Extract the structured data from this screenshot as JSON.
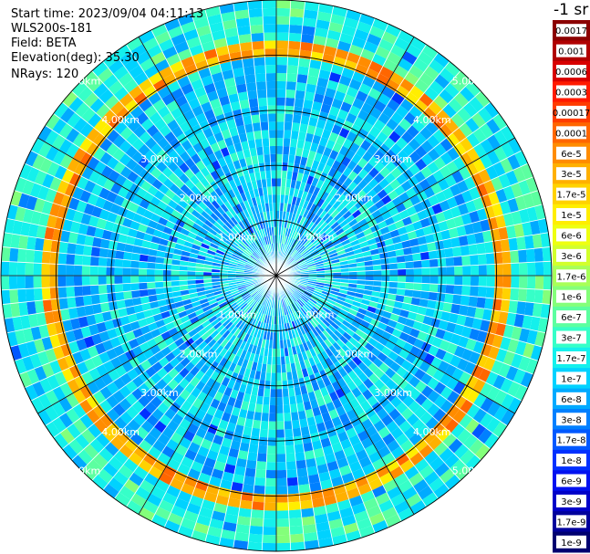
{
  "header": {
    "start_time": "Start time: 2023/09/04 04:11:13",
    "instrument": "WLS200s-181",
    "field": "Field: BETA",
    "elevation": "Elevation(deg): 35.30",
    "nrays": "NRays: 120"
  },
  "colorbar": {
    "unit_label": "-1 sr",
    "ticks": [
      "0.0017",
      "0.001",
      "0.0006",
      "0.0003",
      "0.00017",
      "0.0001",
      "6e-5",
      "3e-5",
      "1.7e-5",
      "1e-5",
      "6e-6",
      "3e-6",
      "1.7e-6",
      "1e-6",
      "6e-7",
      "3e-7",
      "1.7e-7",
      "1e-7",
      "6e-8",
      "3e-8",
      "1.7e-8",
      "1e-8",
      "6e-9",
      "3e-9",
      "1.7e-9",
      "1e-9"
    ],
    "colors": [
      "#8b0000",
      "#b00000",
      "#d80000",
      "#ff1a00",
      "#ff3c00",
      "#ff6600",
      "#ff8c00",
      "#ffb000",
      "#ffd200",
      "#ffee00",
      "#eeff10",
      "#d2ff2c",
      "#a8ff58",
      "#84ff7a",
      "#5cffa0",
      "#36ffc8",
      "#14f0ec",
      "#00d2ff",
      "#00aaff",
      "#0080ff",
      "#0058ff",
      "#0030ff",
      "#0010f0",
      "#0000c8",
      "#00009c",
      "#000070"
    ]
  },
  "chart_data": {
    "type": "heatmap",
    "projection": "polar (PPI scan)",
    "n_rays": 120,
    "range_rings_km": [
      1.0,
      2.0,
      3.0,
      4.0,
      5.0
    ],
    "ring_labels": [
      "1.00km",
      "2.00km",
      "3.00km",
      "4.00km",
      "5.00km"
    ],
    "colorscale": "log",
    "value_range": [
      1e-09,
      0.0017
    ],
    "field": "BETA",
    "features": [
      {
        "description": "high-backscatter band",
        "range_km": [
          4.1,
          4.25
        ],
        "values": [
          1e-05,
          0.0001
        ]
      },
      {
        "description": "background",
        "range_km": [
          0,
          5.0
        ],
        "values": [
          3e-08,
          3e-07
        ]
      }
    ]
  }
}
